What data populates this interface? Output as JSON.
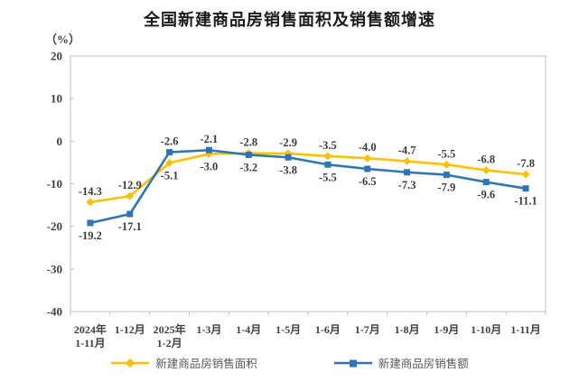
{
  "title": "全国新建商品房销售面积及销售额增速",
  "unit_label": "（%）",
  "colors": {
    "sales_area_line": "#FFC000",
    "sales_amount_line": "#2E75B6",
    "plot_frame": "#BFBFBF",
    "tick_text": "#404040",
    "data_label_text": "#3b3b3b",
    "title_text": "#1a1a1a",
    "legend_text": "#595959",
    "background": "#ffffff"
  },
  "chart_data": {
    "type": "line",
    "title": "全国新建商品房销售面积及销售额增速",
    "unit": "（%）",
    "xlabel": "",
    "ylabel": "（%）",
    "grid": false,
    "legend_position": "bottom",
    "ylim": [
      -40,
      20
    ],
    "yticks": [
      20,
      10,
      0,
      -10,
      -20,
      -30,
      -40
    ],
    "categories": [
      "2024年\n1-11月",
      "1-12月",
      "2025年\n1-2月",
      "1-3月",
      "1-4月",
      "1-5月",
      "1-6月",
      "1-7月",
      "1-8月",
      "1-9月",
      "1-10月",
      "1-11月"
    ],
    "series": [
      {
        "name": "新建商品房销售面积",
        "color": "#FFC000",
        "marker": "diamond",
        "values": [
          -14.3,
          -12.9,
          -5.1,
          -3.0,
          -2.8,
          -2.9,
          -3.5,
          -4.0,
          -4.7,
          -5.5,
          -6.8,
          -7.8
        ],
        "labels": [
          "-14.3",
          "-12.9",
          "-5.1",
          "-3.0",
          "-2.8",
          "-2.9",
          "-3.5",
          "-4.0",
          "-4.7",
          "-5.5",
          "-6.8",
          "-7.8"
        ]
      },
      {
        "name": "新建商品房销售额",
        "color": "#2E75B6",
        "marker": "square",
        "values": [
          -19.2,
          -17.1,
          -2.6,
          -2.1,
          -3.2,
          -3.8,
          -5.5,
          -6.5,
          -7.3,
          -7.9,
          -9.6,
          -11.1
        ],
        "labels": [
          "-19.2",
          "-17.1",
          "-2.6",
          "-2.1",
          "-3.2",
          "-3.8",
          "-5.5",
          "-6.5",
          "-7.3",
          "-7.9",
          "-9.6",
          "-11.1"
        ]
      }
    ]
  }
}
